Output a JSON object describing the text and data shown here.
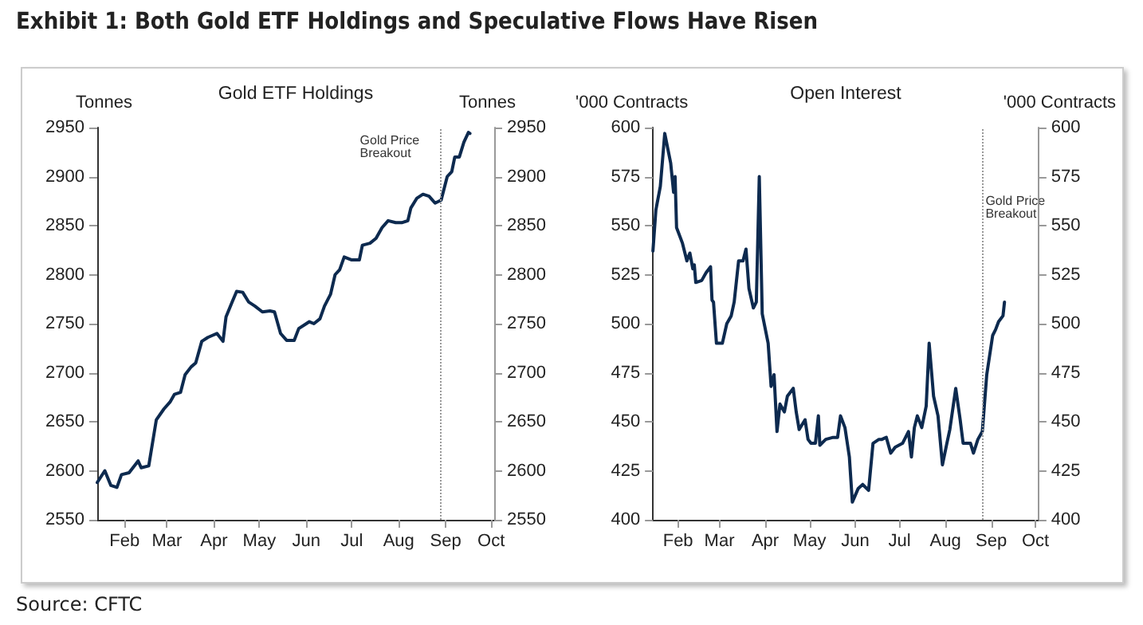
{
  "chart_data": [
    {
      "type": "other",
      "title": "Exhibit 1: Both Gold ETF Holdings and Speculative Flows Have Risen",
      "annotations": [
        "Source: CFTC"
      ]
    },
    {
      "type": "line",
      "title": "Gold ETF Holdings",
      "ylabel": "Tonnes",
      "y2label": "Tonnes",
      "x": [
        "--01-14",
        "--01-19",
        "--01-23",
        "--01-27",
        "--01-30",
        "--02-04",
        "--02-10",
        "--02-12",
        "--02-17",
        "--02-22",
        "--02-27",
        "--03-03",
        "--03-06",
        "--03-10",
        "--03-13",
        "--03-17",
        "--03-20",
        "--03-24",
        "--03-28",
        "--03-31",
        "--04-03",
        "--04-07",
        "--04-09",
        "--04-13",
        "--04-16",
        "--04-20",
        "--04-24",
        "--04-28",
        "--05-03",
        "--05-08",
        "--05-11",
        "--05-15",
        "--05-19",
        "--05-24",
        "--05-27",
        "--06-01",
        "--06-03",
        "--06-06",
        "--06-10",
        "--06-13",
        "--06-17",
        "--06-20",
        "--06-23",
        "--06-26",
        "--07-01",
        "--07-06",
        "--07-08",
        "--07-13",
        "--07-17",
        "--07-21",
        "--07-25",
        "--07-30",
        "--08-03",
        "--08-07",
        "--08-09",
        "--08-13",
        "--08-17",
        "--08-21",
        "--08-25",
        "--08-29",
        "--09-02",
        "--09-05",
        "--09-07",
        "--09-10",
        "--09-13",
        "--09-16",
        "--09-17"
      ],
      "series": [
        {
          "color": "#0d2a4f",
          "values": [
            2588,
            2600,
            2585,
            2583,
            2596,
            2598,
            2610,
            2603,
            2605,
            2652,
            2663,
            2670,
            2678,
            2680,
            2698,
            2706,
            2710,
            2732,
            2736,
            2738,
            2740,
            2732,
            2757,
            2772,
            2783,
            2782,
            2772,
            2768,
            2762,
            2763,
            2762,
            2740,
            2733,
            2733,
            2745,
            2750,
            2752,
            2750,
            2755,
            2768,
            2780,
            2800,
            2805,
            2818,
            2815,
            2815,
            2830,
            2832,
            2837,
            2848,
            2855,
            2853,
            2853,
            2855,
            2868,
            2878,
            2882,
            2880,
            2873,
            2876,
            2900,
            2905,
            2920,
            2920,
            2935,
            2945,
            2944
          ]
        }
      ],
      "xlim": [
        "--01-14",
        "--10-03"
      ],
      "xticks": [
        {
          "value": "--02-01",
          "label": "Feb"
        },
        {
          "value": "--03-01",
          "label": "Mar"
        },
        {
          "value": "--04-01",
          "label": "Apr"
        },
        {
          "value": "--05-01",
          "label": "May"
        },
        {
          "value": "--06-01",
          "label": "Jun"
        },
        {
          "value": "--07-01",
          "label": "Jul"
        },
        {
          "value": "--08-01",
          "label": "Aug"
        },
        {
          "value": "--09-01",
          "label": "Sep"
        },
        {
          "value": "--10-01",
          "label": "Oct"
        }
      ],
      "ylim": [
        2550,
        2950
      ],
      "yticks": [
        2550,
        2600,
        2650,
        2700,
        2750,
        2800,
        2850,
        2900,
        2950
      ],
      "y2lim": [
        2550,
        2950
      ],
      "y2ticks": [
        2550,
        2600,
        2650,
        2700,
        2750,
        2800,
        2850,
        2900,
        2950
      ],
      "ref_lines": [
        {
          "axis": "x",
          "value": "--08-28",
          "label": "Gold Price Breakout",
          "color": "#999999",
          "line_style": "dotted"
        }
      ],
      "grid": false,
      "marker": "none",
      "line_style": "solid"
    },
    {
      "type": "line",
      "title": "Open Interest",
      "ylabel": "'000 Contracts",
      "y2label": "'000 Contracts",
      "x": [
        "--01-15",
        "--01-17",
        "--01-20",
        "--01-23",
        "--01-27",
        "--01-29",
        "--01-30",
        "--01-31",
        "--02-04",
        "--02-07",
        "--02-09",
        "--02-11",
        "--02-12",
        "--02-13",
        "--02-17",
        "--02-20",
        "--02-23",
        "--02-24",
        "--02-25",
        "--02-27",
        "--03-03",
        "--03-06",
        "--03-09",
        "--03-11",
        "--03-14",
        "--03-17",
        "--03-19",
        "--03-21",
        "--03-24",
        "--03-26",
        "--03-28",
        "--03-30",
        "--04-03",
        "--04-05",
        "--04-07",
        "--04-09",
        "--04-11",
        "--04-14",
        "--04-16",
        "--04-20",
        "--04-22",
        "--04-24",
        "--04-28",
        "--04-30",
        "--05-02",
        "--05-05",
        "--05-07",
        "--05-08",
        "--05-12",
        "--05-17",
        "--05-20",
        "--05-22",
        "--05-25",
        "--05-28",
        "--05-30",
        "--06-03",
        "--06-06",
        "--06-10",
        "--06-13",
        "--06-17",
        "--06-19",
        "--06-22",
        "--06-25",
        "--06-28",
        "--07-03",
        "--07-07",
        "--07-09",
        "--07-11",
        "--07-13",
        "--07-16",
        "--07-19",
        "--07-21",
        "--07-24",
        "--07-27",
        "--07-30",
        "--08-02",
        "--08-04",
        "--08-08",
        "--08-11",
        "--08-13",
        "--08-18",
        "--08-20",
        "--08-23",
        "--08-26",
        "--08-29",
        "--09-02",
        "--09-04",
        "--09-06",
        "--09-09",
        "--09-10"
      ],
      "series": [
        {
          "color": "#0d2a4f",
          "values": [
            537,
            558,
            570,
            597,
            582,
            567,
            575,
            549,
            541,
            532,
            536,
            528,
            530,
            521,
            522,
            526,
            529,
            512,
            511,
            490,
            490,
            500,
            504,
            511,
            532,
            532,
            538,
            518,
            508,
            511,
            575,
            505,
            490,
            468,
            474,
            445,
            459,
            455,
            463,
            467,
            455,
            446,
            451,
            441,
            439,
            439,
            453,
            438,
            441,
            442,
            442,
            453,
            447,
            432,
            409,
            416,
            418,
            415,
            439,
            441,
            441,
            442,
            434,
            437,
            439,
            445,
            432,
            447,
            453,
            447,
            458,
            490,
            463,
            453,
            428,
            439,
            446,
            467,
            451,
            439,
            439,
            434,
            441,
            445,
            474,
            494,
            497,
            501,
            504,
            511
          ]
        }
      ],
      "xlim": [
        "--01-15",
        "--10-03"
      ],
      "xticks": [
        {
          "value": "--02-01",
          "label": "Feb"
        },
        {
          "value": "--03-01",
          "label": "Mar"
        },
        {
          "value": "--04-01",
          "label": "Apr"
        },
        {
          "value": "--05-01",
          "label": "May"
        },
        {
          "value": "--06-01",
          "label": "Jun"
        },
        {
          "value": "--07-01",
          "label": "Jul"
        },
        {
          "value": "--08-01",
          "label": "Aug"
        },
        {
          "value": "--09-01",
          "label": "Sep"
        },
        {
          "value": "--10-01",
          "label": "Oct"
        }
      ],
      "ylim": [
        400,
        600
      ],
      "yticks": [
        400,
        425,
        450,
        475,
        500,
        525,
        550,
        575,
        600
      ],
      "y2lim": [
        400,
        600
      ],
      "y2ticks": [
        400,
        425,
        450,
        475,
        500,
        525,
        550,
        575,
        600
      ],
      "ref_lines": [
        {
          "axis": "x",
          "value": "--08-26",
          "label": "Gold Price Breakout",
          "color": "#999999",
          "line_style": "dotted"
        }
      ],
      "grid": false,
      "marker": "none",
      "line_style": "solid"
    }
  ]
}
